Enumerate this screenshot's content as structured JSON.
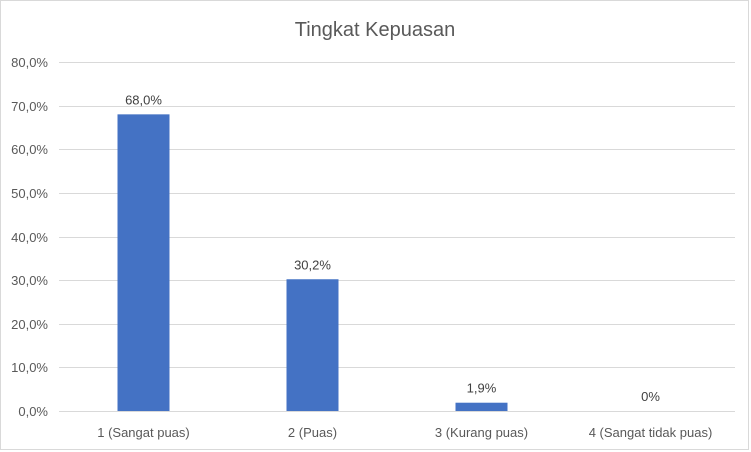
{
  "chart_data": {
    "type": "bar",
    "title": "Tingkat Kepuasan",
    "xlabel": "",
    "ylabel": "",
    "categories": [
      "1 (Sangat puas)",
      "2 (Puas)",
      "3 (Kurang puas)",
      "4 (Sangat tidak puas)"
    ],
    "values": [
      68.0,
      30.2,
      1.9,
      0
    ],
    "data_labels": [
      "68,0%",
      "30,2%",
      "1,9%",
      "0%"
    ],
    "ylim": [
      0,
      80
    ],
    "y_ticks": [
      0,
      10,
      20,
      30,
      40,
      50,
      60,
      70,
      80
    ],
    "y_tick_labels": [
      "0,0%",
      "10,0%",
      "20,0%",
      "30,0%",
      "40,0%",
      "50,0%",
      "60,0%",
      "70,0%",
      "80,0%"
    ],
    "grid": true,
    "legend": "none",
    "bar_color": "#4472C4",
    "grid_color": "#d9d9d9"
  }
}
